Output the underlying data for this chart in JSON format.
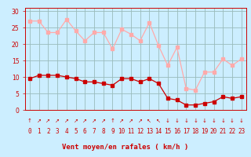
{
  "hours": [
    0,
    1,
    2,
    3,
    4,
    5,
    6,
    7,
    8,
    9,
    10,
    11,
    12,
    13,
    14,
    15,
    16,
    17,
    18,
    19,
    20,
    21,
    22,
    23
  ],
  "avg_wind": [
    9.5,
    10.5,
    10.5,
    10.5,
    10.0,
    9.5,
    8.5,
    8.5,
    8.0,
    7.5,
    9.5,
    9.5,
    8.5,
    9.5,
    8.0,
    3.5,
    3.0,
    1.5,
    1.5,
    2.0,
    2.5,
    4.0,
    3.5,
    4.0
  ],
  "gusts": [
    27.0,
    27.0,
    23.5,
    23.5,
    27.5,
    24.0,
    21.0,
    23.5,
    23.5,
    18.5,
    24.5,
    23.0,
    21.0,
    26.5,
    19.5,
    13.5,
    19.0,
    6.5,
    6.0,
    11.5,
    11.5,
    15.5,
    13.5,
    15.5
  ],
  "avg_color": "#cc0000",
  "gust_color": "#ffaaaa",
  "bg_color": "#cceeff",
  "grid_color": "#99bbbb",
  "xlabel": "Vent moyen/en rafales ( km/h )",
  "yticks": [
    0,
    5,
    10,
    15,
    20,
    25,
    30
  ],
  "ylim": [
    0,
    31
  ],
  "xlim": [
    -0.5,
    23.5
  ],
  "tick_fontsize": 5.5,
  "axis_fontsize": 6.5,
  "marker_size": 2.5,
  "line_width": 0.9,
  "wind_arrows": [
    "↑",
    "↗",
    "↗",
    "↗",
    "↗",
    "↗",
    "↗",
    "↗",
    "↗",
    "↑",
    "↗",
    "↗",
    "↗",
    "↖",
    "↖",
    "↓",
    "↓",
    "↓",
    "↓",
    "↓",
    "↓",
    "↓",
    "↓",
    "↓"
  ]
}
